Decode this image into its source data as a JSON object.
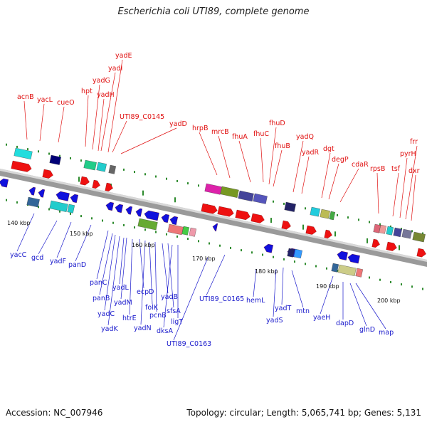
{
  "title": "Escherichia coli UTI89, complete genome",
  "accession": "Accession: NC_007946",
  "summary": "Topology: circular; Length: 5,065,741 bp; Genes: 5,131",
  "forward_genes": [
    "acnB",
    "yacL",
    "cueO",
    "hpt",
    "yadG",
    "yadH",
    "yadI",
    "yadE",
    "UTI89_C0145",
    "yadD",
    "hrpB",
    "mrcB",
    "fhuA",
    "fhuC",
    "fhuD",
    "fhuB",
    "yadQ",
    "yadR",
    "dgt",
    "degP",
    "cdaR",
    "rpsB",
    "tsf",
    "pyrH",
    "frr",
    "dxr"
  ],
  "reverse_genes": [
    "yacC",
    "gcd",
    "yadF",
    "panD",
    "panC",
    "panB",
    "yadC",
    "yadK",
    "yadL",
    "yadM",
    "htrE",
    "ecpD",
    "yadN",
    "folK",
    "pcnB",
    "yadB",
    "sfsA",
    "dksA",
    "ligT",
    "UTI89_C0163",
    "UTI89_C0165",
    "hemL",
    "yadT",
    "yadS",
    "mtn",
    "yaeH",
    "dapD",
    "glnD",
    "map"
  ],
  "scale_ticks": [
    "140 kbp",
    "150 kbp",
    "160 kbp",
    "170 kbp",
    "180 kbp",
    "190 kbp",
    "200 kbp"
  ],
  "colors": {
    "forward_label": "#e01010",
    "reverse_label": "#1a1acc",
    "forward_gene": "#ee1111",
    "reverse_gene": "#1111dd",
    "tick_green": "#2e8b2e",
    "backbone": "#888888"
  }
}
